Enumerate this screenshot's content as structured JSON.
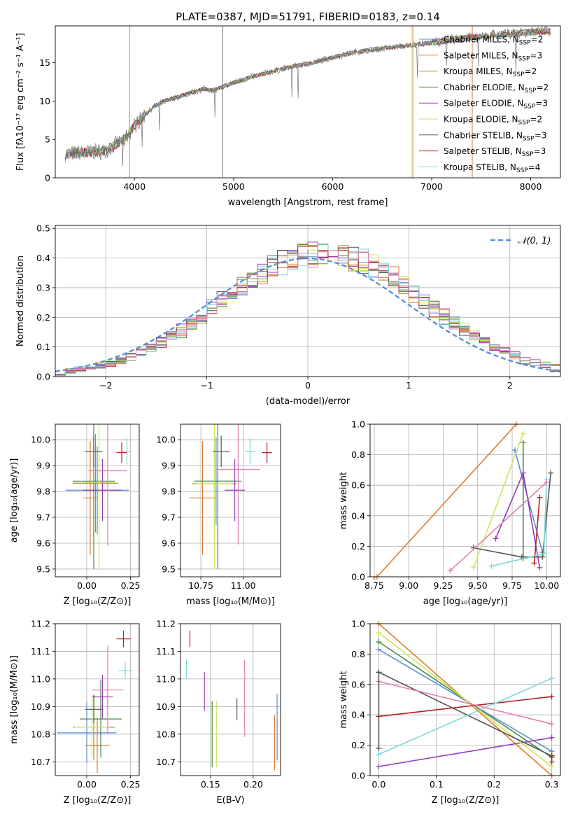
{
  "figure": {
    "title": "PLATE=0387, MJD=51791, FIBERID=0183, z=0.14"
  },
  "models": [
    {
      "name": "Chabrier MILES",
      "nssp": "2",
      "color": "#5b8fd6"
    },
    {
      "name": "Salpeter MILES",
      "nssp": "3",
      "color": "#e07c2e"
    },
    {
      "name": "Kroupa MILES",
      "nssp": "2",
      "color": "#b7862a"
    },
    {
      "name": "Chabrier ELODIE",
      "nssp": "2",
      "color": "#4a8a4a"
    },
    {
      "name": "Salpeter ELODIE",
      "nssp": "3",
      "color": "#9a3ab5"
    },
    {
      "name": "Kroupa ELODIE",
      "nssp": "2",
      "color": "#cde65a"
    },
    {
      "name": "Chabrier STELIB",
      "nssp": "3",
      "color": "#555555"
    },
    {
      "name": "Salpeter STELIB",
      "nssp": "3",
      "color": "#b22020"
    },
    {
      "name": "Kroupa STELIB",
      "nssp": "4",
      "color": "#7fd8dc"
    }
  ],
  "chart_data": [
    {
      "id": "spectrum",
      "type": "line",
      "xlabel": "wavelength [Angstrom, rest frame]",
      "ylabel": "Flux [fλ10⁻¹⁷ erg cm⁻² s⁻¹ A⁻¹]",
      "xlim": [
        3200,
        8300
      ],
      "ylim": [
        0,
        19.8
      ],
      "xticks": [
        4000,
        5000,
        6000,
        7000,
        8000
      ],
      "yticks": [
        0,
        5,
        10,
        15
      ],
      "x": [
        3300,
        3500,
        3700,
        3800,
        3900,
        4000,
        4100,
        4200,
        4300,
        4500,
        4700,
        4800,
        5000,
        5200,
        5400,
        5600,
        5800,
        6000,
        6200,
        6400,
        6600,
        6800,
        7000,
        7200,
        7400,
        7600,
        7800,
        8000,
        8200
      ],
      "y": [
        3.1,
        3.3,
        3.5,
        4.3,
        5.0,
        6.8,
        8.2,
        9.3,
        10.0,
        10.8,
        11.6,
        11.4,
        12.4,
        13.2,
        13.9,
        14.5,
        15.0,
        15.7,
        16.3,
        16.7,
        17.0,
        17.3,
        17.6,
        18.0,
        18.3,
        18.6,
        18.8,
        19.0,
        19.1
      ],
      "verticals": [
        {
          "x": 3950,
          "color": "#e07c2e"
        },
        {
          "x": 4890,
          "color": "#777777"
        },
        {
          "x": 6795,
          "color": "#cde65a"
        },
        {
          "x": 6810,
          "color": "#e07c2e"
        },
        {
          "x": 7410,
          "color": "#e07c2e"
        }
      ],
      "legend_position": "upper-right"
    },
    {
      "id": "residuals",
      "type": "bar",
      "xlabel": "(data-model)/error",
      "ylabel": "Normed distribution",
      "xlim": [
        -2.5,
        2.5
      ],
      "ylim": [
        0,
        0.51
      ],
      "xticks": [
        -2,
        -1,
        0,
        1,
        2
      ],
      "yticks": [
        0.0,
        0.1,
        0.2,
        0.3,
        0.4,
        0.5
      ],
      "curve_label": "𝒩(0, 1)",
      "curve_color": "#5b8fd6",
      "bin_width": 0.1,
      "grid": true
    },
    {
      "id": "age-vs-z",
      "type": "scatter",
      "xlabel": "Z [log₁₀(Z/Z⊙)]",
      "ylabel": "age  [log₁₀(age/yr)]",
      "xlim": [
        -0.18,
        0.3
      ],
      "ylim": [
        9.47,
        10.06
      ],
      "xticks": [
        0.0,
        0.25
      ],
      "yticks": [
        9.5,
        9.6,
        9.7,
        9.8,
        9.9,
        10.0
      ],
      "points": [
        {
          "x": 0.06,
          "y": 9.805,
          "xerr": 0.18,
          "yerr": 0.17,
          "color": "#5b8fd6"
        },
        {
          "x": 0.02,
          "y": 9.775,
          "xerr": 0.04,
          "yerr": 0.22,
          "color": "#e07c2e"
        },
        {
          "x": 0.05,
          "y": 9.832,
          "xerr": 0.13,
          "yerr": 0.19,
          "color": "#b7862a"
        },
        {
          "x": 0.04,
          "y": 9.84,
          "xerr": 0.12,
          "yerr": 0.34,
          "color": "#4a8a4a"
        },
        {
          "x": 0.09,
          "y": 9.805,
          "xerr": 0.11,
          "yerr": 0.12,
          "color": "#9a3ab5"
        },
        {
          "x": 0.07,
          "y": 9.835,
          "xerr": 0.09,
          "yerr": 0.34,
          "color": "#cde65a"
        },
        {
          "x": 0.04,
          "y": 9.955,
          "xerr": 0.05,
          "yerr": 0.06,
          "color": "#555555"
        },
        {
          "x": 0.2,
          "y": 9.95,
          "xerr": 0.03,
          "yerr": 0.04,
          "color": "#b22020"
        },
        {
          "x": 0.23,
          "y": 9.955,
          "xerr": 0.025,
          "yerr": 0.05,
          "color": "#7fd8dc"
        },
        {
          "x": 0.12,
          "y": 9.88,
          "xerr": 0.11,
          "yerr": 0.29,
          "color": "#e07fb5"
        }
      ]
    },
    {
      "id": "age-vs-mass",
      "type": "scatter",
      "xlabel": "mass [log₁₀(M/M⊙)]",
      "ylabel": "",
      "xlim": [
        10.63,
        11.22
      ],
      "ylim": [
        9.47,
        10.06
      ],
      "xticks": [
        10.75,
        11.0
      ],
      "yticks": [
        9.5,
        9.6,
        9.7,
        9.8,
        9.9,
        10.0
      ],
      "points": [
        {
          "x": 10.84,
          "y": 9.84,
          "xerr": 0.12,
          "yerr": 0.17,
          "color": "#5b8fd6"
        },
        {
          "x": 10.76,
          "y": 9.775,
          "xerr": 0.08,
          "yerr": 0.22,
          "color": "#e07c2e"
        },
        {
          "x": 10.83,
          "y": 9.83,
          "xerr": 0.13,
          "yerr": 0.19,
          "color": "#b7862a"
        },
        {
          "x": 10.85,
          "y": 9.84,
          "xerr": 0.14,
          "yerr": 0.34,
          "color": "#4a8a4a"
        },
        {
          "x": 10.95,
          "y": 9.805,
          "xerr": 0.06,
          "yerr": 0.12,
          "color": "#9a3ab5"
        },
        {
          "x": 10.83,
          "y": 9.83,
          "xerr": 0.11,
          "yerr": 0.33,
          "color": "#cde65a"
        },
        {
          "x": 10.87,
          "y": 9.955,
          "xerr": 0.05,
          "yerr": 0.06,
          "color": "#555555"
        },
        {
          "x": 11.14,
          "y": 9.95,
          "xerr": 0.03,
          "yerr": 0.04,
          "color": "#b22020"
        },
        {
          "x": 11.04,
          "y": 9.955,
          "xerr": 0.03,
          "yerr": 0.05,
          "color": "#7fd8dc"
        },
        {
          "x": 10.97,
          "y": 9.885,
          "xerr": 0.13,
          "yerr": 0.29,
          "color": "#e07fb5"
        }
      ]
    },
    {
      "id": "massweight-vs-age",
      "type": "line",
      "xlabel": "age  [log₁₀(age/yr)]",
      "ylabel": "mass weight",
      "xlim": [
        8.72,
        10.1
      ],
      "ylim": [
        0,
        1.0
      ],
      "xticks": [
        8.75,
        9.0,
        9.25,
        9.5,
        9.75,
        10.0
      ],
      "yticks": [
        0.0,
        0.2,
        0.4,
        0.6,
        0.8,
        1.0
      ],
      "series": [
        {
          "color": "#5b8fd6",
          "x": [
            9.77,
            9.97
          ],
          "y": [
            0.83,
            0.16
          ]
        },
        {
          "color": "#e07c2e",
          "x": [
            8.77,
            9.78
          ],
          "y": [
            0.0,
            1.0
          ]
        },
        {
          "color": "#4a8a4a",
          "x": [
            9.83,
            9.83
          ],
          "y": [
            0.12,
            0.88
          ]
        },
        {
          "color": "#9a3ab5",
          "x": [
            9.63,
            9.83,
            9.95
          ],
          "y": [
            0.25,
            0.68,
            0.06
          ]
        },
        {
          "color": "#cde65a",
          "x": [
            9.47,
            9.83
          ],
          "y": [
            0.06,
            0.94
          ]
        },
        {
          "color": "#555555",
          "x": [
            9.47,
            9.82,
            9.97,
            10.03
          ],
          "y": [
            0.19,
            0.13,
            0.13,
            0.68
          ]
        },
        {
          "color": "#b22020",
          "x": [
            9.91,
            9.95
          ],
          "y": [
            0.09,
            0.52
          ]
        },
        {
          "color": "#7fd8dc",
          "x": [
            9.6,
            9.98,
            10.0
          ],
          "y": [
            0.07,
            0.15,
            0.64
          ]
        },
        {
          "color": "#e07fb5",
          "x": [
            9.3,
            10.0
          ],
          "y": [
            0.04,
            0.62
          ]
        }
      ]
    },
    {
      "id": "mass-vs-z",
      "type": "scatter",
      "xlabel": "Z [log₁₀(Z/Z⊙)]",
      "ylabel": "mass [log₁₀(M/M⊙)]",
      "xlim": [
        -0.18,
        0.3
      ],
      "ylim": [
        10.65,
        11.2
      ],
      "xticks": [
        0.0,
        0.25
      ],
      "yticks": [
        10.7,
        10.8,
        10.9,
        11.0,
        11.1,
        11.2
      ],
      "points": [
        {
          "x": 0.0,
          "y": 10.805,
          "xerr": 0.17,
          "yerr": 0.11,
          "color": "#5b8fd6"
        },
        {
          "x": 0.06,
          "y": 10.76,
          "xerr": 0.07,
          "yerr": 0.1,
          "color": "#e07c2e"
        },
        {
          "x": 0.04,
          "y": 10.825,
          "xerr": 0.12,
          "yerr": 0.12,
          "color": "#b7862a"
        },
        {
          "x": 0.08,
          "y": 10.855,
          "xerr": 0.12,
          "yerr": 0.14,
          "color": "#4a8a4a"
        },
        {
          "x": 0.09,
          "y": 10.935,
          "xerr": 0.06,
          "yerr": 0.08,
          "color": "#9a3ab5"
        },
        {
          "x": 0.03,
          "y": 10.825,
          "xerr": 0.1,
          "yerr": 0.11,
          "color": "#cde65a"
        },
        {
          "x": 0.04,
          "y": 10.89,
          "xerr": 0.05,
          "yerr": 0.05,
          "color": "#555555"
        },
        {
          "x": 0.21,
          "y": 11.145,
          "xerr": 0.04,
          "yerr": 0.03,
          "color": "#b22020"
        },
        {
          "x": 0.22,
          "y": 11.03,
          "xerr": 0.04,
          "yerr": 0.03,
          "color": "#7fd8dc"
        },
        {
          "x": 0.12,
          "y": 10.96,
          "xerr": 0.09,
          "yerr": 0.16,
          "color": "#e07fb5"
        }
      ]
    },
    {
      "id": "mass-vs-ebv",
      "type": "scatter",
      "xlabel": "E(B-V)",
      "ylabel": "",
      "xlim": [
        0.115,
        0.232
      ],
      "ylim": [
        10.65,
        11.2
      ],
      "xticks": [
        0.15,
        0.2
      ],
      "yticks": [
        10.7,
        10.8,
        10.9,
        11.0,
        11.1,
        11.2
      ],
      "points": [
        {
          "x": 0.228,
          "y": 10.825,
          "yerr": 0.12,
          "color": "#5b8fd6"
        },
        {
          "x": 0.225,
          "y": 10.77,
          "yerr": 0.1,
          "color": "#e07c2e"
        },
        {
          "x": 0.152,
          "y": 10.8,
          "yerr": 0.12,
          "color": "#4a8a4a"
        },
        {
          "x": 0.143,
          "y": 10.955,
          "yerr": 0.07,
          "color": "#9a3ab5"
        },
        {
          "x": 0.157,
          "y": 10.8,
          "yerr": 0.12,
          "color": "#cde65a"
        },
        {
          "x": 0.181,
          "y": 10.89,
          "yerr": 0.04,
          "color": "#555555"
        },
        {
          "x": 0.126,
          "y": 11.145,
          "yerr": 0.03,
          "color": "#b22020"
        },
        {
          "x": 0.122,
          "y": 11.035,
          "yerr": 0.035,
          "color": "#7fd8dc"
        },
        {
          "x": 0.19,
          "y": 10.93,
          "yerr": 0.14,
          "color": "#e07fb5"
        }
      ]
    },
    {
      "id": "massweight-vs-z",
      "type": "line",
      "xlabel": "Z [log₁₀(Z/Z⊙)]",
      "ylabel": "mass weight",
      "xlim": [
        -0.015,
        0.315
      ],
      "ylim": [
        0,
        1.0
      ],
      "xticks": [
        0.0,
        0.1,
        0.2,
        0.3
      ],
      "yticks": [
        0.0,
        0.2,
        0.4,
        0.6,
        0.8,
        1.0
      ],
      "series": [
        {
          "color": "#5b8fd6",
          "x": [
            0.0,
            0.3
          ],
          "y": [
            0.83,
            0.16
          ]
        },
        {
          "color": "#e07c2e",
          "x": [
            0.0,
            0.3
          ],
          "y": [
            1.0,
            0.0
          ]
        },
        {
          "color": "#4a8a4a",
          "x": [
            0.0,
            0.3
          ],
          "y": [
            0.88,
            0.12
          ]
        },
        {
          "color": "#9a3ab5",
          "x": [
            0.0,
            0.3
          ],
          "y": [
            0.06,
            0.25
          ]
        },
        {
          "color": "#cde65a",
          "x": [
            0.0,
            0.3
          ],
          "y": [
            0.94,
            0.06
          ]
        },
        {
          "color": "#555555",
          "x": [
            0.0,
            0.3
          ],
          "y": [
            0.68,
            0.13
          ]
        },
        {
          "color": "#b22020",
          "x": [
            0.0,
            0.3
          ],
          "y": [
            0.39,
            0.52
          ]
        },
        {
          "color": "#7fd8dc",
          "x": [
            0.0,
            0.3
          ],
          "y": [
            0.14,
            0.64
          ]
        },
        {
          "color": "#e07fb5",
          "x": [
            0.0,
            0.3
          ],
          "y": [
            0.62,
            0.34
          ]
        },
        {
          "color": "#555555",
          "x": [
            0.0,
            0.0
          ],
          "y": [
            0.18,
            0.68
          ]
        },
        {
          "color": "#b22020",
          "x": [
            0.3,
            0.3
          ],
          "y": [
            0.09,
            0.13
          ]
        }
      ]
    }
  ]
}
